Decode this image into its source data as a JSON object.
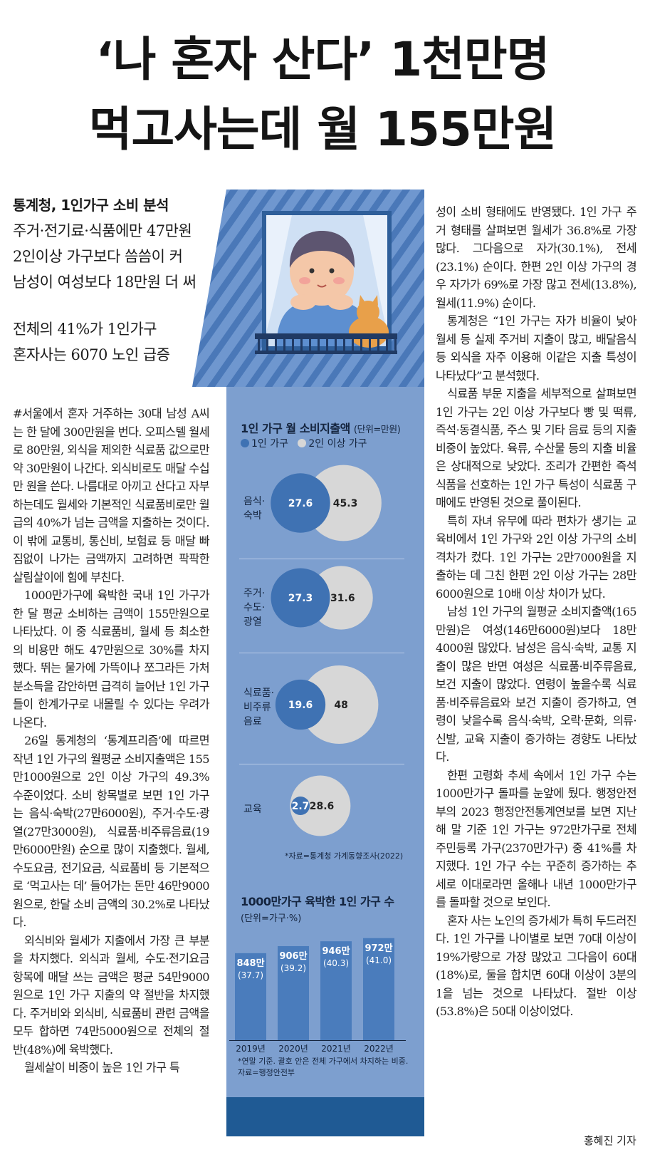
{
  "headline": {
    "line1": "‘나 혼자 산다’ 1천만명",
    "line2": "먹고사는데 월 155만원"
  },
  "subheads": [
    "통계청, 1인가구 소비 분석",
    "주거·전기료·식품에만 47만원",
    "2인이상 가구보다 씀씀이 커",
    "남성이 여성보다 18만원 더 써",
    "전체의 41%가 1인가구",
    "혼자사는 6070 노인 급증"
  ],
  "body_left": [
    "#서울에서 혼자 거주하는 30대 남성 A씨는 한 달에 300만원을 번다. 오피스텔 월세로 80만원, 외식을 제외한 식료품 값으로만 약 30만원이 나간다. 외식비로도 매달 수십만 원을 쓴다. 나름대로 아끼고 산다고 자부하는데도 월세와 기본적인 식료품비로만 월급의 40%가 넘는 금액을 지출하는 것이다. 이 밖에 교통비, 통신비, 보험료 등 매달 빠짐없이 나가는 금액까지 고려하면 팍팍한 살림살이에 힘에 부친다.",
    "1000만가구에 육박한 국내 1인 가구가 한 달 평균 소비하는 금액이 155만원으로 나타났다. 이 중 식료품비, 월세 등 최소한의 비용만 해도 47만원으로 30%를 차지했다. 뛰는 물가에 가뜩이나 쪼그라든 가처분소득을 감안하면 급격히 늘어난 1인 가구들이 한계가구로 내몰릴 수 있다는 우려가 나온다.",
    "26일 통계청의 ‘통계프리즘’에 따르면 작년 1인 가구의 월평균 소비지출액은 155만1000원으로 2인 이상 가구의 49.3% 수준이었다. 소비 항목별로 보면 1인 가구는 음식·숙박(27만6000원), 주거·수도·광열(27만3000원), 식료품·비주류음료(19만6000만원) 순으로 많이 지출했다. 월세, 수도요금, 전기요금, 식료품비 등 기본적으로 ‘먹고사는 데’ 들어가는 돈만 46만9000원으로, 한달 소비 금액의 30.2%로 나타났다.",
    "외식비와 월세가 지출에서 가장 큰 부분을 차지했다. 외식과 월세, 수도·전기요금 항목에 매달 쓰는 금액은 평균 54만9000원으로 1인 가구 지출의 약 절반을 차지했다. 주거비와 외식비, 식료품비 관련 금액을 모두 합하면 74만5000원으로 전체의 절반(48%)에 육박했다.",
    "월세살이 비중이 높은 1인 가구 특"
  ],
  "body_right": [
    "성이 소비 형태에도 반영됐다. 1인 가구 주거 형태를 살펴보면 월세가 36.8%로 가장 많다. 그다음으로 자가(30.1%), 전세(23.1%) 순이다. 한편 2인 이상 가구의 경우 자가가 69%로 가장 많고 전세(13.8%), 월세(11.9%) 순이다.",
    "통계청은 “1인 가구는 자가 비율이 낮아 월세 등 실제 주거비 지출이 많고, 배달음식 등 외식을 자주 이용해 이같은 지출 특성이 나타났다”고 분석했다.",
    "식료품 부문 지출을 세부적으로 살펴보면 1인 가구는 2인 이상 가구보다 빵 및 떡류, 즉석·동결식품, 주스 및 기타 음료 등의 지출 비중이 높았다. 육류, 수산물 등의 지출 비율은 상대적으로 낮았다. 조리가 간편한 즉석식품을 선호하는 1인 가구 특성이 식료품 구매에도 반영된 것으로 풀이된다.",
    "특히 자녀 유무에 따라 편차가 생기는 교육비에서 1인 가구와 2인 이상 가구의 소비 격차가 컸다. 1인 가구는 2만7000원을 지출하는 데 그친 한편 2인 이상 가구는 28만6000원으로 10배 이상 차이가 났다.",
    "남성 1인 가구의 월평균 소비지출액(165만원)은 여성(146만6000원)보다 18만4000원 많았다. 남성은 음식·숙박, 교통 지출이 많은 반면 여성은 식료품·비주류음료, 보건 지출이 많았다. 연령이 높을수록 식료품·비주류음료와 보건 지출이 증가하고, 연령이 낮을수록 음식·숙박, 오락·문화, 의류·신발, 교육 지출이 증가하는 경향도 나타났다.",
    "한편 고령화 추세 속에서 1인 가구 수는 1000만가구 돌파를 눈앞에 뒀다. 행정안전부의 2023 행정안전통계연보를 보면 지난해 말 기준 1인 가구는 972만가구로 전체 주민등록 가구(2370만가구) 중 41%를 차지했다. 1인 가구 수는 꾸준히 증가하는 추세로 이대로라면 올해나 내년 1000만가구를 돌파할 것으로 보인다.",
    "혼자 사는 노인의 증가세가 특히 두드러진다. 1인 가구를 나이별로 보면 70대 이상이 19%가량으로 가장 많았고 그다음이 60대(18%)로, 둘을 합치면 60대 이상이 3분의 1을 넘는 것으로 나타났다. 절반 이상(53.8%)은 50대 이상이었다."
  ],
  "byline": "홍혜진 기자",
  "colors": {
    "panel": "#7d9fcf",
    "single": "#3f72b3",
    "multi": "#d7d7d7",
    "bar": "#4a7cbc",
    "panel_dark": "#1f5a94"
  },
  "chart_data": [
    {
      "type": "bubble",
      "title": "1인 가구 월 소비지출액",
      "unit": "(단위=만원)",
      "legend": [
        "1인 가구",
        "2인 이상 가구"
      ],
      "categories": [
        "음식·숙박",
        "주거·수도·광열",
        "식료품·비주류음료",
        "교육"
      ],
      "category_lines": [
        [
          "음식·",
          "숙박"
        ],
        [
          "주거·",
          "수도·",
          "광열"
        ],
        [
          "식료품·",
          "비주류",
          "음료"
        ],
        [
          "교육"
        ]
      ],
      "series": [
        {
          "name": "1인 가구",
          "values": [
            27.6,
            27.3,
            19.6,
            2.7
          ]
        },
        {
          "name": "2인 이상 가구",
          "values": [
            45.3,
            31.6,
            48,
            28.6
          ]
        }
      ],
      "value_labels": {
        "single": [
          "27.6",
          "27.3",
          "19.6",
          "2.7"
        ],
        "multi": [
          "45.3",
          "31.6",
          "48",
          "28.6"
        ]
      },
      "source": "*자료=통계청 가계동향조사(2022)"
    },
    {
      "type": "bar",
      "title": "1000만가구 육박한 1인 가구 수",
      "unit": "(단위=가구·%)",
      "categories": [
        "2019년",
        "2020년",
        "2021년",
        "2022년"
      ],
      "values": [
        848,
        906,
        946,
        972
      ],
      "shares": [
        37.7,
        39.2,
        40.3,
        41.0
      ],
      "labels": [
        "848만",
        "906만",
        "946만",
        "972만"
      ],
      "share_labels": [
        "(37.7)",
        "(39.2)",
        "(40.3)",
        "(41.0)"
      ],
      "note": "*연말 기준. 괄호 안은 전체 가구에서 차지하는 비중.",
      "source": "자료=행정안전부"
    }
  ]
}
